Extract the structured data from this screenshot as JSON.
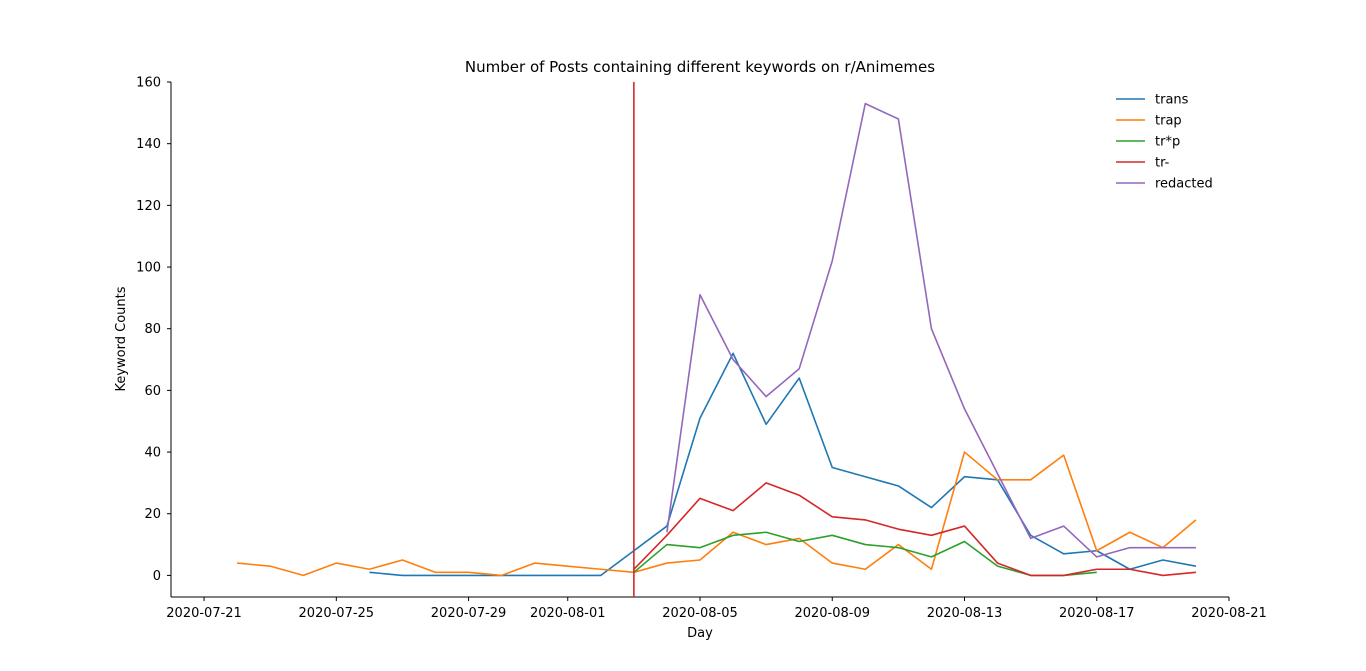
{
  "chart_data": {
    "type": "line",
    "title": "Number of Posts containing different keywords on r/Animemes",
    "xlabel": "Day",
    "ylabel": "Keyword Counts",
    "xlim": [
      "2020-07-20",
      "2020-08-21"
    ],
    "ylim": [
      -7,
      160
    ],
    "x_ticks": [
      "2020-07-21",
      "2020-07-25",
      "2020-07-29",
      "2020-08-01",
      "2020-08-05",
      "2020-08-09",
      "2020-08-13",
      "2020-08-17",
      "2020-08-21"
    ],
    "y_ticks": [
      0,
      20,
      40,
      60,
      80,
      100,
      120,
      140,
      160
    ],
    "grid": false,
    "legend_position": "top-right",
    "vline": {
      "x": "2020-08-03",
      "color": "#d62728"
    },
    "series": [
      {
        "name": "trans",
        "color": "#1f77b4",
        "points": [
          [
            "2020-07-26",
            1
          ],
          [
            "2020-07-27",
            0
          ],
          [
            "2020-07-28",
            0
          ],
          [
            "2020-07-29",
            0
          ],
          [
            "2020-07-30",
            0
          ],
          [
            "2020-07-31",
            0
          ],
          [
            "2020-08-01",
            0
          ],
          [
            "2020-08-02",
            0
          ],
          [
            "2020-08-03",
            8
          ],
          [
            "2020-08-04",
            16
          ],
          [
            "2020-08-05",
            51
          ],
          [
            "2020-08-06",
            72
          ],
          [
            "2020-08-07",
            49
          ],
          [
            "2020-08-08",
            64
          ],
          [
            "2020-08-09",
            35
          ],
          [
            "2020-08-10",
            32
          ],
          [
            "2020-08-11",
            29
          ],
          [
            "2020-08-12",
            22
          ],
          [
            "2020-08-13",
            32
          ],
          [
            "2020-08-14",
            31
          ],
          [
            "2020-08-15",
            13
          ],
          [
            "2020-08-16",
            7
          ],
          [
            "2020-08-17",
            8
          ],
          [
            "2020-08-18",
            2
          ],
          [
            "2020-08-19",
            5
          ],
          [
            "2020-08-20",
            3
          ]
        ]
      },
      {
        "name": "trap",
        "color": "#ff7f0e",
        "points": [
          [
            "2020-07-22",
            4
          ],
          [
            "2020-07-23",
            3
          ],
          [
            "2020-07-24",
            0
          ],
          [
            "2020-07-25",
            4
          ],
          [
            "2020-07-26",
            2
          ],
          [
            "2020-07-27",
            5
          ],
          [
            "2020-07-28",
            1
          ],
          [
            "2020-07-29",
            1
          ],
          [
            "2020-07-30",
            0
          ],
          [
            "2020-07-31",
            4
          ],
          [
            "2020-08-01",
            3
          ],
          [
            "2020-08-02",
            2
          ],
          [
            "2020-08-03",
            1
          ],
          [
            "2020-08-04",
            4
          ],
          [
            "2020-08-05",
            5
          ],
          [
            "2020-08-06",
            14
          ],
          [
            "2020-08-07",
            10
          ],
          [
            "2020-08-08",
            12
          ],
          [
            "2020-08-09",
            4
          ],
          [
            "2020-08-10",
            2
          ],
          [
            "2020-08-11",
            10
          ],
          [
            "2020-08-12",
            2
          ],
          [
            "2020-08-13",
            40
          ],
          [
            "2020-08-14",
            31
          ],
          [
            "2020-08-15",
            31
          ],
          [
            "2020-08-16",
            39
          ],
          [
            "2020-08-17",
            8
          ],
          [
            "2020-08-18",
            14
          ],
          [
            "2020-08-19",
            9
          ],
          [
            "2020-08-20",
            18
          ]
        ]
      },
      {
        "name": "tr*p",
        "color": "#2ca02c",
        "points": [
          [
            "2020-08-03",
            1
          ],
          [
            "2020-08-04",
            10
          ],
          [
            "2020-08-05",
            9
          ],
          [
            "2020-08-06",
            13
          ],
          [
            "2020-08-07",
            14
          ],
          [
            "2020-08-08",
            11
          ],
          [
            "2020-08-09",
            13
          ],
          [
            "2020-08-10",
            10
          ],
          [
            "2020-08-11",
            9
          ],
          [
            "2020-08-12",
            6
          ],
          [
            "2020-08-13",
            11
          ],
          [
            "2020-08-14",
            3
          ],
          [
            "2020-08-15",
            0
          ],
          [
            "2020-08-16",
            0
          ],
          [
            "2020-08-17",
            1
          ]
        ]
      },
      {
        "name": "tr-",
        "color": "#d62728",
        "points": [
          [
            "2020-08-03",
            2
          ],
          [
            "2020-08-04",
            13
          ],
          [
            "2020-08-05",
            25
          ],
          [
            "2020-08-06",
            21
          ],
          [
            "2020-08-07",
            30
          ],
          [
            "2020-08-08",
            26
          ],
          [
            "2020-08-09",
            19
          ],
          [
            "2020-08-10",
            18
          ],
          [
            "2020-08-11",
            15
          ],
          [
            "2020-08-12",
            13
          ],
          [
            "2020-08-13",
            16
          ],
          [
            "2020-08-14",
            4
          ],
          [
            "2020-08-15",
            0
          ],
          [
            "2020-08-16",
            0
          ],
          [
            "2020-08-17",
            2
          ],
          [
            "2020-08-18",
            2
          ],
          [
            "2020-08-19",
            0
          ],
          [
            "2020-08-20",
            1
          ]
        ]
      },
      {
        "name": "redacted",
        "color": "#9467bd",
        "points": [
          [
            "2020-08-04",
            14
          ],
          [
            "2020-08-05",
            91
          ],
          [
            "2020-08-06",
            70
          ],
          [
            "2020-08-07",
            58
          ],
          [
            "2020-08-08",
            67
          ],
          [
            "2020-08-09",
            102
          ],
          [
            "2020-08-10",
            153
          ],
          [
            "2020-08-11",
            148
          ],
          [
            "2020-08-12",
            80
          ],
          [
            "2020-08-13",
            54
          ],
          [
            "2020-08-14",
            33
          ],
          [
            "2020-08-15",
            12
          ],
          [
            "2020-08-16",
            16
          ],
          [
            "2020-08-17",
            6
          ],
          [
            "2020-08-18",
            9
          ],
          [
            "2020-08-19",
            9
          ],
          [
            "2020-08-20",
            9
          ]
        ]
      }
    ]
  }
}
